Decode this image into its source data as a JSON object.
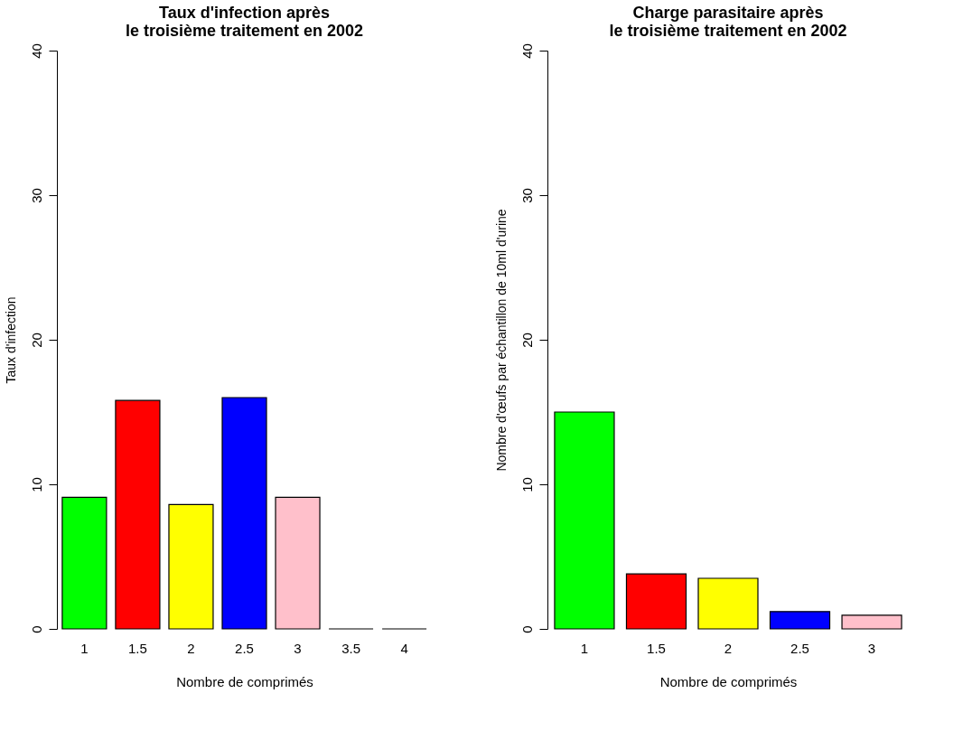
{
  "chart_data": [
    {
      "type": "bar",
      "title": "Taux d'infection après\nle troisième traitement en 2002",
      "xlabel": "Nombre de comprimés",
      "ylabel": "Taux d'infection",
      "categories": [
        "1",
        "1.5",
        "2",
        "2.5",
        "3",
        "3.5",
        "4"
      ],
      "values": [
        9.1,
        15.8,
        8.6,
        16.0,
        9.1,
        0,
        0
      ],
      "colors": [
        "#00ff00",
        "#ff0000",
        "#ffff00",
        "#0000ff",
        "#ffc0cb",
        "#000000",
        "#000000"
      ],
      "ylim": [
        0,
        40
      ],
      "yticks": [
        0,
        10,
        20,
        30,
        40
      ],
      "grid": false
    },
    {
      "type": "bar",
      "title": "Charge parasitaire après\nle troisième traitement en 2002",
      "xlabel": "Nombre de comprimés",
      "ylabel": "Nombre d'œufs par échantillon de 10ml d'urine",
      "categories": [
        "1",
        "1.5",
        "2",
        "2.5",
        "3"
      ],
      "values": [
        15.0,
        3.8,
        3.5,
        1.2,
        0.95
      ],
      "colors": [
        "#00ff00",
        "#ff0000",
        "#ffff00",
        "#0000ff",
        "#ffc0cb"
      ],
      "ylim": [
        0,
        40
      ],
      "yticks": [
        0,
        10,
        20,
        30,
        40
      ],
      "grid": false
    }
  ]
}
